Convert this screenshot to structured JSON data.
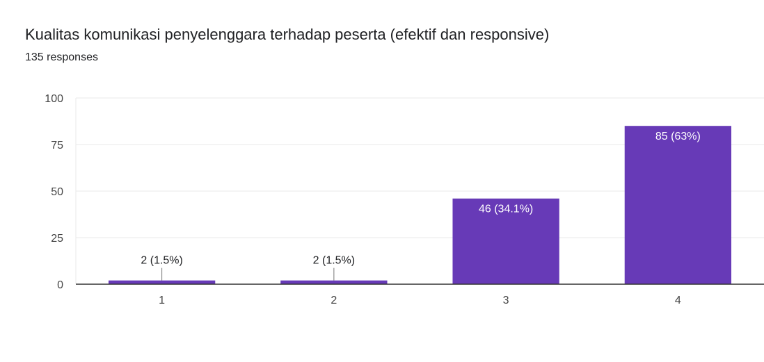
{
  "header": {
    "title": "Kualitas komunikasi penyelenggara terhadap peserta (efektif dan responsive)",
    "subtitle": "135 responses"
  },
  "colors": {
    "bar": "#673ab7",
    "grid": "#e8e8e8",
    "axis": "#333333",
    "label_outside": "#202124",
    "label_inside": "#ffffff"
  },
  "chart_data": {
    "type": "bar",
    "title": "Kualitas komunikasi penyelenggara terhadap peserta (efektif dan responsive)",
    "subtitle": "135 responses",
    "categories": [
      "1",
      "2",
      "3",
      "4"
    ],
    "values": [
      2,
      2,
      46,
      85
    ],
    "data_labels": [
      "2 (1.5%)",
      "2 (1.5%)",
      "46 (34.1%)",
      "85 (63%)"
    ],
    "yticks": [
      0,
      25,
      50,
      75,
      100
    ],
    "ylim": [
      0,
      100
    ],
    "xlabel": "",
    "ylabel": "",
    "grid": true,
    "legend": "none"
  }
}
